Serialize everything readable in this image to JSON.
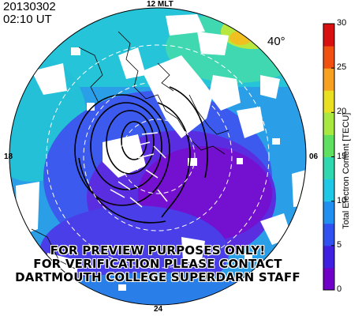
{
  "header": {
    "date": "20130302",
    "time": "02:10 UT"
  },
  "map": {
    "mlt_labels": {
      "top": "12 MLT",
      "bottom": "24",
      "left": "18",
      "right": "06"
    },
    "latitude_label": "40°"
  },
  "watermark": {
    "lines": [
      "FOR PREVIEW PURPOSES ONLY!",
      "FOR VERIFICATION PLEASE CONTACT",
      "DARTMOUTH COLLEGE SUPERDARN STAFF"
    ]
  },
  "colorbar": {
    "title": "Total Electron Content [TECU]",
    "min": 0,
    "max": 30,
    "ticks": [
      "30",
      "25",
      "20",
      "15",
      "10",
      "5",
      "0"
    ],
    "colors": [
      "#7000c8",
      "#4020e0",
      "#3050f0",
      "#2090f0",
      "#20c8e8",
      "#30d8b0",
      "#60e060",
      "#a8e840",
      "#e8e020",
      "#f8a020",
      "#f05010",
      "#d81010"
    ]
  }
}
